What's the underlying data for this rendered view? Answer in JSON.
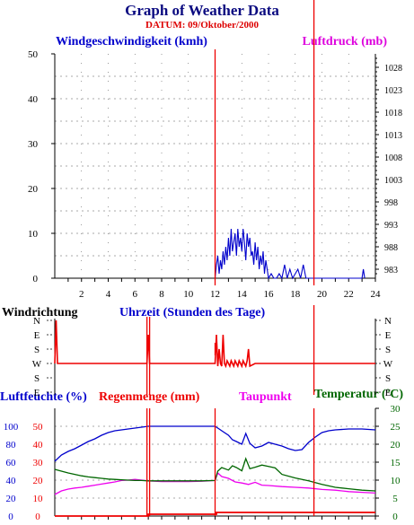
{
  "header": {
    "title": "Graph of Weather Data",
    "subtitle": "DATUM: 09/Oktober/2000"
  },
  "colors": {
    "title": "#0a0a80",
    "subtitle": "#dd0000",
    "wind": "#0000cc",
    "pressure": "#dd00dd",
    "red": "#ee0000",
    "dew": "#ee00ee",
    "temp": "#006600",
    "grid": "#555555"
  },
  "chart_data": [
    {
      "type": "line",
      "title": "",
      "ylabel": "Windgeschwindigkeit (kmh)",
      "ylabel_right": "Luftdruck (mb)",
      "xlabel": "Uhrzeit (Stunden des Tage)",
      "xlim": [
        0,
        24
      ],
      "ylim": [
        0,
        50
      ],
      "x_ticks": [
        2,
        4,
        6,
        8,
        10,
        12,
        14,
        16,
        18,
        20,
        22,
        24
      ],
      "y_ticks": [
        0,
        10,
        20,
        30,
        40,
        50
      ],
      "y2lim": [
        981,
        1031
      ],
      "y2_ticks": [
        983,
        988,
        993,
        998,
        1003,
        1008,
        1013,
        1018,
        1023,
        1028
      ],
      "series": [
        {
          "name": "Windgeschwindigkeit (kmh)",
          "x": [
            12.0,
            12.1,
            12.2,
            12.3,
            12.4,
            12.5,
            12.6,
            12.7,
            12.8,
            12.9,
            13.0,
            13.1,
            13.2,
            13.3,
            13.4,
            13.5,
            13.6,
            13.7,
            13.8,
            13.9,
            14.0,
            14.1,
            14.2,
            14.3,
            14.4,
            14.5,
            14.6,
            14.7,
            14.8,
            14.9,
            15.0,
            15.1,
            15.2,
            15.3,
            15.4,
            15.5,
            15.6,
            15.7,
            15.8,
            15.9,
            16.0,
            16.2,
            16.4,
            16.6,
            16.8,
            17.0,
            17.2,
            17.4,
            17.6,
            17.8,
            18.0,
            18.2,
            18.4,
            18.6,
            18.8,
            19.0,
            23.0,
            23.1,
            23.2
          ],
          "values": [
            0,
            3,
            5,
            1,
            4,
            2,
            6,
            3,
            7,
            4,
            9,
            5,
            11,
            6,
            8,
            10,
            5,
            11,
            7,
            9,
            6,
            11,
            8,
            4,
            10,
            7,
            9,
            5,
            6,
            3,
            8,
            4,
            7,
            2,
            5,
            3,
            6,
            1,
            4,
            2,
            0,
            1,
            0,
            0,
            1,
            0,
            3,
            0,
            2,
            0,
            1,
            2,
            0,
            3,
            0,
            0,
            0,
            2,
            0
          ]
        }
      ],
      "markers": [
        12.0,
        19.4
      ]
    },
    {
      "type": "line",
      "title": "Windrichtung",
      "y_categories": [
        "N",
        "E",
        "S",
        "W",
        "S",
        "E"
      ],
      "xlim": [
        0,
        24
      ],
      "series": [
        {
          "name": "Windrichtung",
          "x": [
            0.0,
            0.1,
            0.2,
            6.9,
            7.0,
            7.1,
            12.0,
            12.1,
            12.2,
            12.3,
            12.4,
            12.5,
            12.6,
            12.7,
            12.8,
            12.9,
            13.0,
            13.1,
            13.2,
            13.3,
            13.4,
            13.5,
            13.6,
            13.7,
            13.8,
            13.9,
            14.0,
            14.1,
            14.2,
            14.3,
            14.4,
            14.5,
            14.6,
            15.0,
            24.0
          ],
          "values": [
            "W",
            "N",
            "W",
            "W",
            "E",
            "W",
            "W",
            "E",
            "W",
            "S",
            "W",
            "W",
            "E",
            "W",
            "W",
            "W",
            "W",
            "W",
            "W",
            "W",
            "W",
            "W",
            "W",
            "W",
            "W",
            "W",
            "W",
            "W",
            "W",
            "W",
            "W",
            "S",
            "W",
            "W",
            "W"
          ]
        }
      ]
    },
    {
      "type": "line",
      "title": "",
      "ylabel_left_outer": "Luftfeuchte (%)",
      "ylabel_left_inner": "Regenmenge (mm)",
      "ylabel_middle": "Taupunkt",
      "ylabel_right": "Temperatur (ºC)",
      "xlim": [
        0,
        24
      ],
      "ylim_humidity": [
        0,
        120
      ],
      "y_ticks_humidity": [
        0,
        20,
        40,
        60,
        80,
        100
      ],
      "ylim_rain": [
        0,
        60
      ],
      "y_ticks_rain": [
        0,
        10,
        20,
        30,
        40,
        50
      ],
      "ylim_temp": [
        0,
        30
      ],
      "y_ticks_temp": [
        0,
        5,
        10,
        15,
        20,
        25,
        30
      ],
      "series": [
        {
          "name": "Luftfeuchte (%)",
          "axis": "humidity",
          "x": [
            0.0,
            0.5,
            1.0,
            1.5,
            2.0,
            2.5,
            3.0,
            3.5,
            4.0,
            4.5,
            5.0,
            5.5,
            6.0,
            6.5,
            7.0,
            8.0,
            9.0,
            10.0,
            11.0,
            12.0,
            12.3,
            12.6,
            13.0,
            13.3,
            13.6,
            14.0,
            14.3,
            14.6,
            15.0,
            15.5,
            16.0,
            16.5,
            17.0,
            17.5,
            18.0,
            18.5,
            19.0,
            19.5,
            20.0,
            20.5,
            21.0,
            22.0,
            23.0,
            24.0
          ],
          "values": [
            61,
            68,
            72,
            75,
            79,
            83,
            86,
            90,
            93,
            95,
            96,
            97,
            98,
            99,
            100,
            100,
            100,
            100,
            100,
            100,
            97,
            94,
            90,
            85,
            83,
            80,
            92,
            81,
            76,
            78,
            82,
            80,
            78,
            75,
            73,
            74,
            82,
            88,
            93,
            95,
            96,
            97,
            97,
            96
          ]
        },
        {
          "name": "Regenmenge (mm)",
          "axis": "rain",
          "x": [
            0.0,
            6.9,
            7.0,
            12.0,
            12.1,
            24.0
          ],
          "values": [
            0,
            0,
            1,
            1,
            2,
            2
          ]
        },
        {
          "name": "Taupunkt",
          "axis": "temp",
          "x": [
            0.0,
            0.5,
            1.0,
            1.5,
            2.0,
            2.5,
            3.0,
            3.5,
            4.0,
            4.5,
            5.0,
            5.5,
            6.0,
            6.5,
            7.0,
            8.0,
            9.0,
            10.0,
            11.0,
            12.0,
            12.2,
            12.5,
            13.0,
            13.5,
            14.0,
            14.5,
            15.0,
            15.5,
            16.0,
            17.0,
            18.0,
            19.0,
            20.0,
            21.0,
            22.0,
            23.0,
            24.0
          ],
          "values": [
            6.0,
            7.0,
            7.5,
            7.8,
            8.0,
            8.3,
            8.6,
            8.9,
            9.2,
            9.5,
            9.9,
            10.0,
            10.2,
            10.0,
            9.8,
            9.6,
            9.6,
            9.6,
            9.7,
            9.9,
            12.0,
            11.0,
            10.5,
            9.5,
            9.2,
            8.8,
            9.4,
            8.6,
            8.5,
            8.2,
            8.0,
            7.8,
            7.4,
            7.2,
            6.8,
            6.6,
            6.4
          ]
        },
        {
          "name": "Temperatur (ºC)",
          "axis": "temp",
          "x": [
            0.0,
            0.5,
            1.0,
            1.5,
            2.0,
            2.5,
            3.0,
            3.5,
            4.0,
            4.5,
            5.0,
            5.5,
            6.0,
            6.5,
            7.0,
            8.0,
            9.0,
            10.0,
            11.0,
            12.0,
            12.2,
            12.5,
            13.0,
            13.3,
            13.6,
            14.0,
            14.3,
            14.6,
            15.0,
            15.5,
            16.0,
            16.5,
            17.0,
            18.0,
            19.0,
            20.0,
            21.0,
            22.0,
            23.0,
            24.0
          ],
          "values": [
            13.0,
            12.5,
            12.0,
            11.6,
            11.2,
            10.9,
            10.7,
            10.5,
            10.3,
            10.2,
            10.1,
            10.0,
            9.9,
            9.9,
            9.8,
            9.8,
            9.8,
            9.8,
            9.8,
            9.9,
            12.5,
            13.5,
            12.8,
            14.0,
            13.5,
            12.6,
            16.0,
            13.2,
            13.6,
            14.2,
            13.8,
            13.4,
            11.6,
            10.6,
            9.8,
            8.8,
            8.0,
            7.6,
            7.2,
            7.0
          ]
        }
      ],
      "markers": [
        12.0,
        19.4
      ]
    }
  ]
}
